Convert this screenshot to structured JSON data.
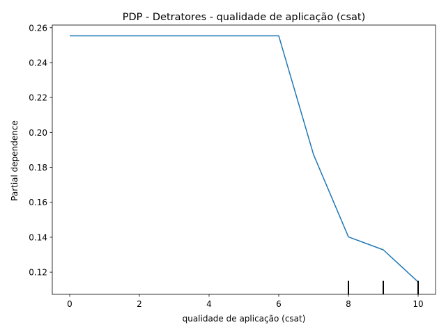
{
  "chart_data": {
    "type": "line",
    "title": "PDP - Detratores - qualidade de aplicação (csat)",
    "xlabel": "qualidade de aplicação (csat)",
    "ylabel": "Partial dependence",
    "xlim": [
      -0.5,
      10.5
    ],
    "ylim": [
      0.1073,
      0.2615
    ],
    "x_ticks": [
      0,
      2,
      4,
      6,
      8,
      10
    ],
    "x_tick_labels": [
      "0",
      "2",
      "4",
      "6",
      "8",
      "10"
    ],
    "y_ticks": [
      0.12,
      0.14,
      0.16,
      0.18,
      0.2,
      0.22,
      0.24,
      0.26
    ],
    "y_tick_labels": [
      "0.12",
      "0.14",
      "0.16",
      "0.18",
      "0.20",
      "0.22",
      "0.24",
      "0.26"
    ],
    "grid": false,
    "series": [
      {
        "x": [
          0,
          1,
          2,
          3,
          4,
          5,
          6,
          7,
          8,
          9,
          10
        ],
        "values": [
          0.2553,
          0.2553,
          0.2553,
          0.2553,
          0.2553,
          0.2553,
          0.2553,
          0.1872,
          0.1402,
          0.1328,
          0.1144
        ],
        "color": "#1f77b4"
      }
    ],
    "rug_marks": [
      8,
      9,
      10
    ]
  }
}
